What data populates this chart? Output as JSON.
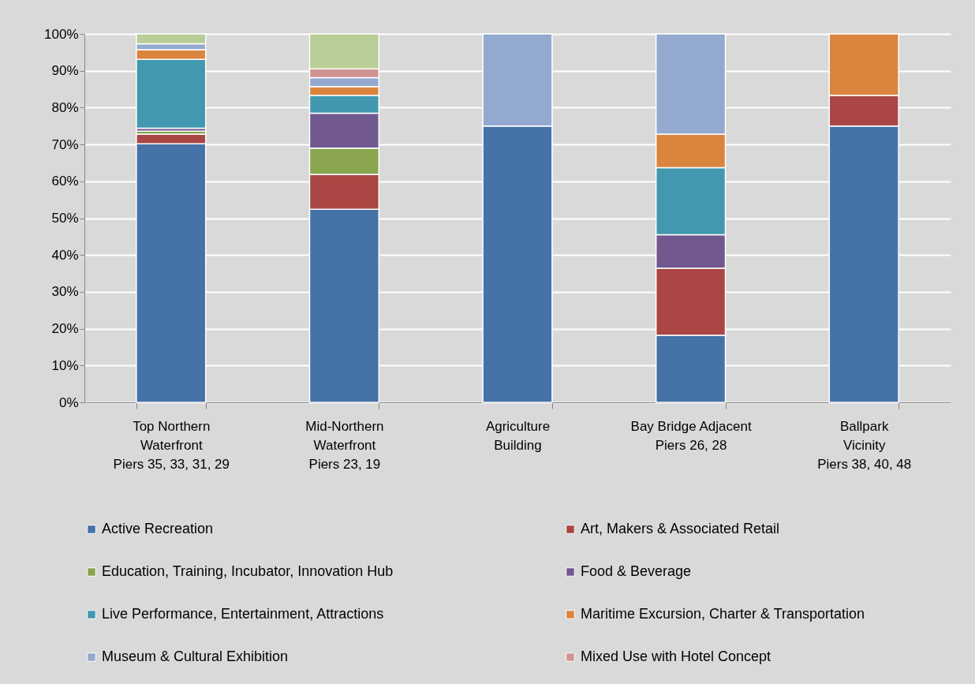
{
  "chart_data": {
    "type": "bar",
    "stacked": true,
    "categories": [
      "Top Northern\nWaterfront\nPiers 35, 33, 31, 29",
      "Mid-Northern\nWaterfront\nPiers 23, 19",
      "Agriculture\nBuilding",
      "Bay Bridge Adjacent\nPiers 26, 28",
      "Ballpark\nVicinity\nPiers 38, 40, 48"
    ],
    "series": [
      {
        "name": "Active Recreation",
        "color": "#4572a7",
        "values": [
          70.2,
          52.4,
          75,
          18.2,
          75
        ]
      },
      {
        "name": "Art, Makers & Associated Retail",
        "color": "#aa4643",
        "values": [
          2.6,
          9.5,
          null,
          18.2,
          8.3
        ]
      },
      {
        "name": "Education, Training, Incubator, Innovation Hub",
        "color": "#89a54e",
        "values": [
          0.8,
          7.1,
          null,
          null,
          null
        ]
      },
      {
        "name": "Food & Beverage",
        "color": "#71588f",
        "values": [
          0.8,
          9.5,
          null,
          9.1,
          null
        ]
      },
      {
        "name": "Live Performance, Entertainment, Attractions",
        "color": "#4198af",
        "values": [
          18.7,
          4.8,
          null,
          18.2,
          null
        ]
      },
      {
        "name": "Maritime Excursion, Charter & Transportation",
        "color": "#db843d",
        "values": [
          2.6,
          2.4,
          null,
          9.1,
          16.7
        ]
      },
      {
        "name": "Museum & Cultural Exhibition",
        "color": "#93a9cf",
        "values": [
          1.6,
          2.4,
          25,
          27.2,
          null
        ]
      },
      {
        "name": "Mixed Use with Hotel Concept",
        "color": "#d19392",
        "values": [
          null,
          2.4,
          null,
          null,
          null
        ]
      },
      {
        "color": "#b9cd96",
        "values": [
          2.7,
          9.5,
          null,
          null,
          null
        ]
      }
    ],
    "ylim": [
      0,
      100
    ],
    "yticks": [
      {
        "value": 0,
        "label": "0%"
      },
      {
        "value": 10,
        "label": "10%"
      },
      {
        "value": 20,
        "label": "20%"
      },
      {
        "value": 30,
        "label": "30%"
      },
      {
        "value": 40,
        "label": "40%"
      },
      {
        "value": 50,
        "label": "50%"
      },
      {
        "value": 60,
        "label": "60%"
      },
      {
        "value": 70,
        "label": "70%"
      },
      {
        "value": 80,
        "label": "80%"
      },
      {
        "value": 90,
        "label": "90%"
      },
      {
        "value": 100,
        "label": "100%"
      }
    ],
    "grid": "y",
    "legend": "bottom"
  }
}
